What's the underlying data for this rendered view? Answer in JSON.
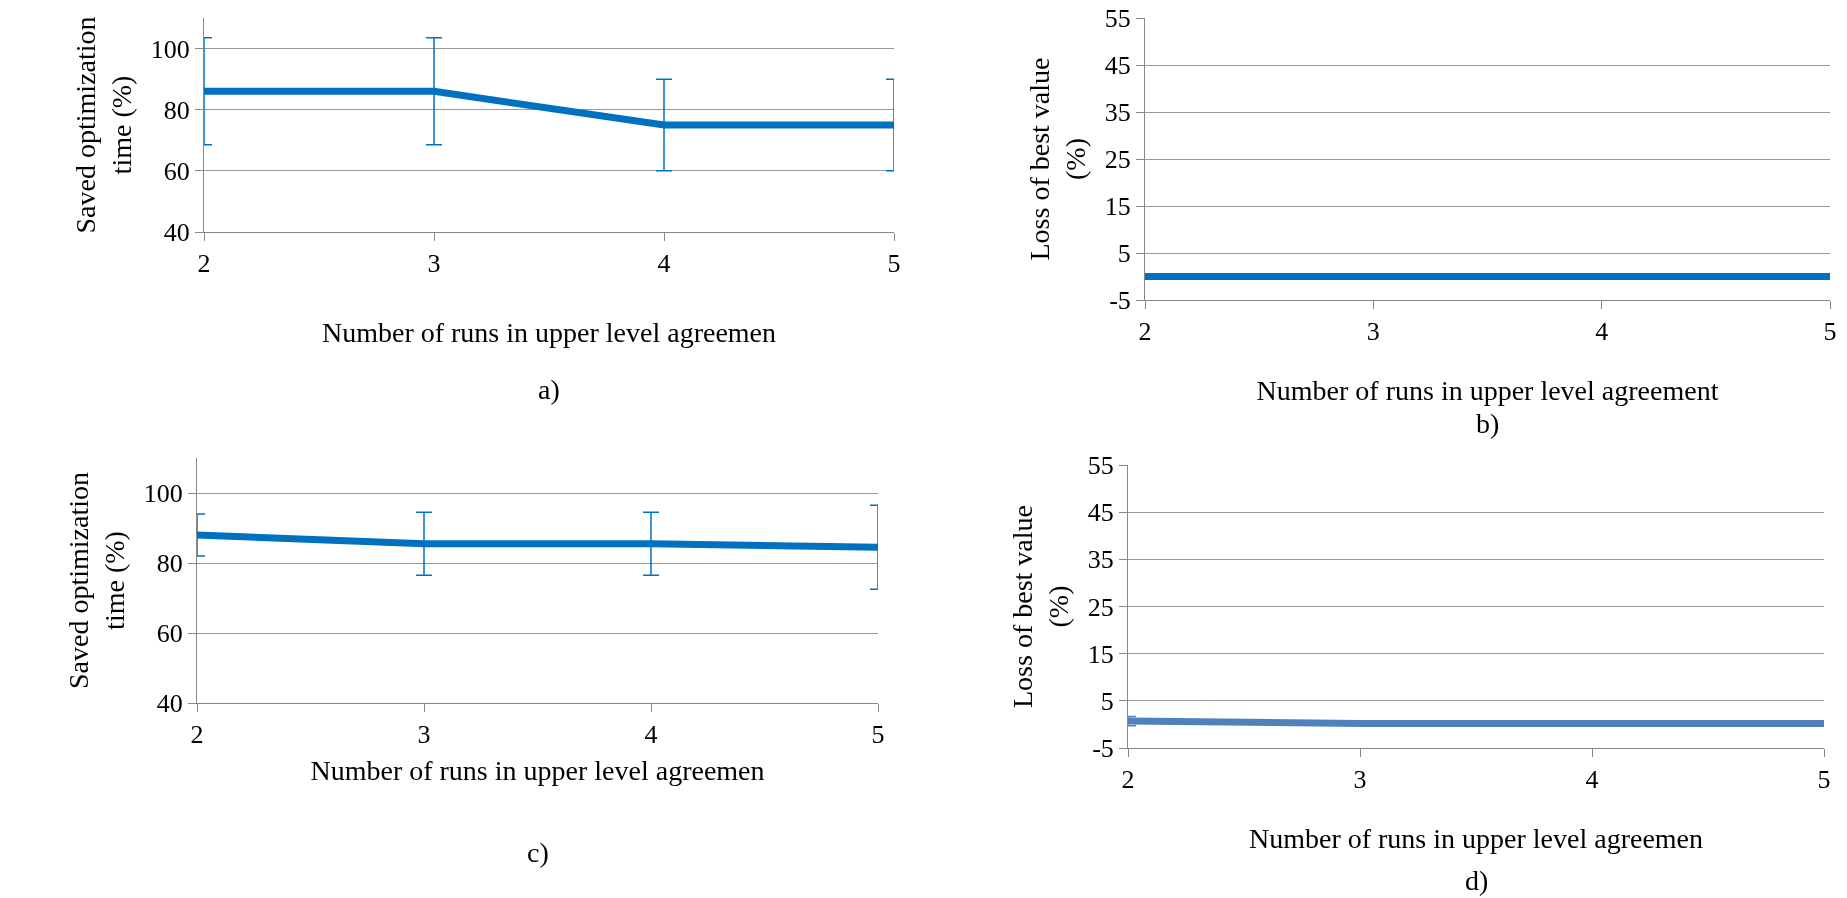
{
  "chart_data": [
    {
      "type": "line",
      "xlabel": "Number of runs in upper level agreemen",
      "ylabel": "Saved optimization time (%)",
      "x": [
        2,
        3,
        4,
        5
      ],
      "xlim": [
        2,
        5
      ],
      "xticks": [
        2,
        3,
        4,
        5
      ],
      "ylim": [
        40,
        110
      ],
      "yticks": [
        40,
        60,
        80,
        100
      ],
      "grid": "y",
      "series": [
        {
          "color": "#0070c0",
          "values": [
            86,
            86,
            75,
            75
          ],
          "errors": [
            17.5,
            17.5,
            15,
            15
          ]
        }
      ],
      "annotations": [
        "a)"
      ]
    },
    {
      "type": "line",
      "xlabel": "Number of runs in upper level agreement",
      "ylabel": "Loss of best value (%)",
      "x": [
        2,
        3,
        4,
        5
      ],
      "xlim": [
        2,
        5
      ],
      "xticks": [
        2,
        3,
        4,
        5
      ],
      "ylim": [
        -5,
        55
      ],
      "yticks": [
        -5,
        5,
        15,
        25,
        35,
        45,
        55
      ],
      "grid": "y",
      "series": [
        {
          "color": "#0070c0",
          "values": [
            0,
            0,
            0,
            0
          ]
        }
      ],
      "annotations": [
        "b)"
      ]
    },
    {
      "type": "line",
      "xlabel": "Number of runs in upper level agreemen",
      "ylabel": "Saved optimization time (%)",
      "x": [
        2,
        3,
        4,
        5
      ],
      "xlim": [
        2,
        5
      ],
      "xticks": [
        2,
        3,
        4,
        5
      ],
      "ylim": [
        40,
        110
      ],
      "yticks": [
        40,
        60,
        80,
        100
      ],
      "grid": "y",
      "series": [
        {
          "color": "#0070c0",
          "values": [
            88,
            85.5,
            85.5,
            84.5
          ],
          "errors": [
            6,
            9,
            9,
            12
          ]
        }
      ],
      "annotations": [
        "c)"
      ]
    },
    {
      "type": "line",
      "xlabel": "Number of runs in upper level agreemen",
      "ylabel": "Loss of best value (%)",
      "x": [
        2,
        3,
        4,
        5
      ],
      "xlim": [
        2,
        5
      ],
      "xticks": [
        2,
        3,
        4,
        5
      ],
      "ylim": [
        -5,
        55
      ],
      "yticks": [
        -5,
        5,
        15,
        25,
        35,
        45,
        55
      ],
      "grid": "y",
      "series": [
        {
          "color": "#4f81bd",
          "values": [
            0.7,
            0.2,
            0.2,
            0.2
          ],
          "errors": [
            1,
            null,
            null,
            0.3
          ]
        }
      ],
      "annotations": [
        "d)"
      ]
    }
  ]
}
